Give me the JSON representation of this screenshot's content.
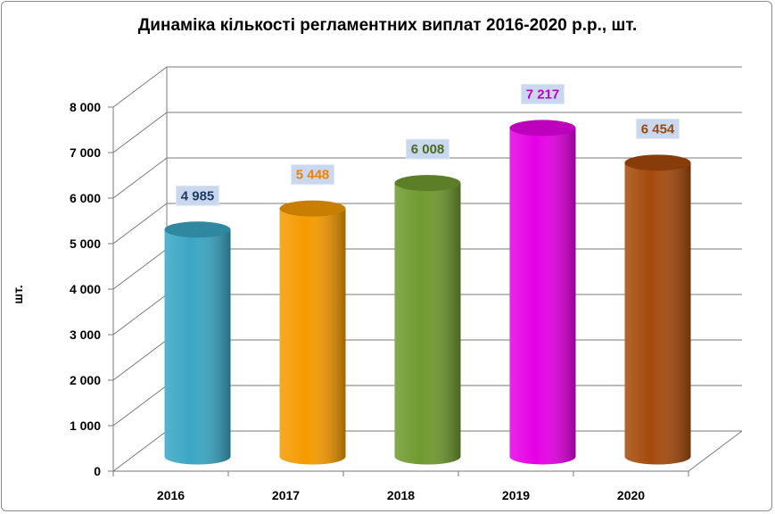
{
  "chart_data": {
    "type": "bar",
    "title": "Динаміка кількості регламентних виплат 2016-2020 р.р., шт.",
    "ylabel": "шт.",
    "xlabel": "",
    "categories": [
      "2016",
      "2017",
      "2018",
      "2019",
      "2020"
    ],
    "values": [
      4985,
      5448,
      6008,
      7217,
      6454
    ],
    "data_labels": [
      "4 985",
      "5 448",
      "6 008",
      "7 217",
      "6 454"
    ],
    "ylim": [
      0,
      8000
    ],
    "yticks": [
      0,
      1000,
      2000,
      3000,
      4000,
      5000,
      6000,
      7000,
      8000
    ],
    "ytick_labels": [
      "0",
      "1 000",
      "2 000",
      "3 000",
      "4 000",
      "5 000",
      "6 000",
      "7 000",
      "8 000"
    ],
    "grid": true,
    "legend": "none",
    "bar_shape": "cylinder",
    "colors": [
      "#3aa6c4",
      "#f59a00",
      "#6f9a2f",
      "#e600e6",
      "#a64a0c"
    ],
    "label_colors": [
      "#1f3a5f",
      "#f08000",
      "#4f6a20",
      "#c000c0",
      "#9a4a10"
    ]
  }
}
